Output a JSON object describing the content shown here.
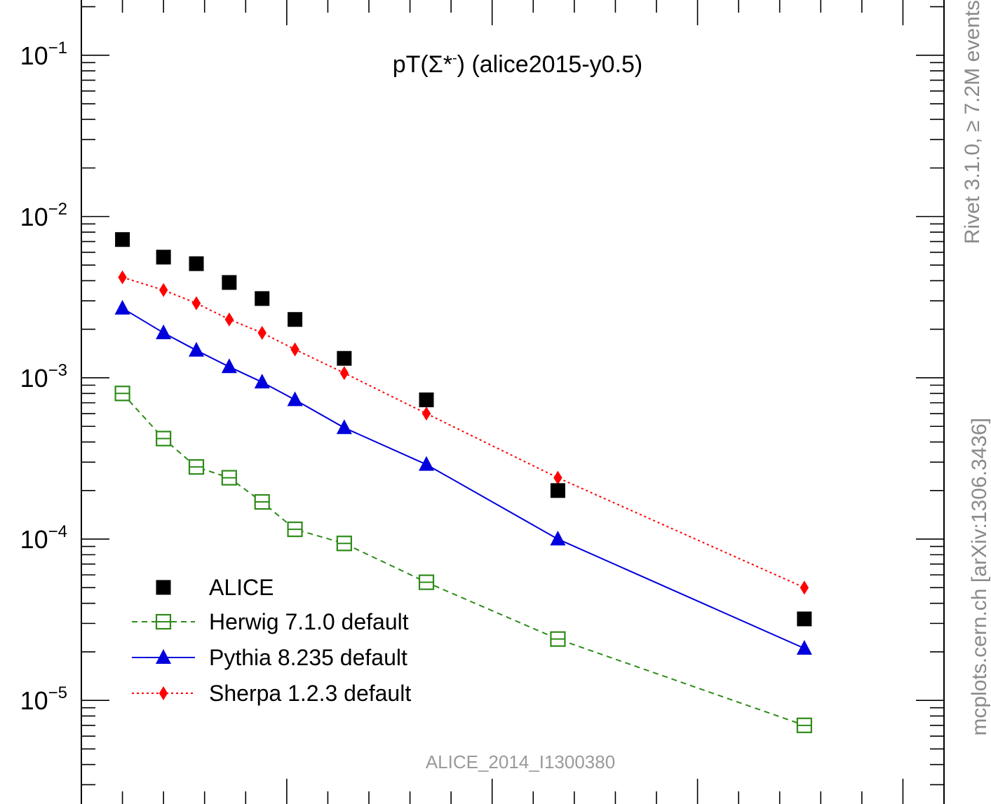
{
  "chart_data": {
    "type": "scatter",
    "title": "pT(Σ*-) (alice2015-y0.5)",
    "title_parts": {
      "main": "pT(",
      "particle": "Σ*",
      "charge": "-",
      "suffix": ") (alice2015-y0.5)"
    },
    "y_scale": "log",
    "ylim": [
      2e-06,
      0.22
    ],
    "xlim": [
      0.0,
      10.5
    ],
    "ytick_labels": [
      {
        "base": "10",
        "exp": "−1",
        "value": 0.1
      },
      {
        "base": "10",
        "exp": "−2",
        "value": 0.01
      },
      {
        "base": "10",
        "exp": "−3",
        "value": 0.001
      },
      {
        "base": "10",
        "exp": "−4",
        "value": 0.0001
      },
      {
        "base": "10",
        "exp": "−5",
        "value": 1e-05
      }
    ],
    "x": [
      0.5,
      1.0,
      1.4,
      1.8,
      2.2,
      2.6,
      3.2,
      4.2,
      5.8,
      8.8
    ],
    "series": [
      {
        "name": "ALICE",
        "marker": "square-filled",
        "line": "none",
        "color": "#000000",
        "values": [
          0.0072,
          0.0056,
          0.0051,
          0.0039,
          0.0031,
          0.0023,
          0.00132,
          0.00073,
          0.0002,
          3.2e-05
        ]
      },
      {
        "name": "Herwig 7.1.0 default",
        "marker": "square-open",
        "line": "dashed",
        "color": "#2e8b18",
        "values": [
          0.0008,
          0.00042,
          0.00028,
          0.00024,
          0.00017,
          0.000115,
          9.4e-05,
          5.4e-05,
          2.4e-05,
          7e-06
        ]
      },
      {
        "name": "Pythia 8.235 default",
        "marker": "triangle-filled",
        "line": "solid",
        "color": "#0000dd",
        "values": [
          0.0027,
          0.0019,
          0.00148,
          0.00117,
          0.00094,
          0.00073,
          0.00049,
          0.00029,
          0.0001,
          2.1e-05
        ]
      },
      {
        "name": "Sherpa 1.2.3 default",
        "marker": "diamond-filled",
        "line": "dotted",
        "color": "#ff0000",
        "values": [
          0.0042,
          0.0035,
          0.0029,
          0.0023,
          0.0019,
          0.0015,
          0.00107,
          0.0006,
          0.00024,
          5e-05
        ]
      }
    ],
    "legend_position": "bottom-left",
    "annotation": "ALICE_2014_I1300380",
    "side_texts": [
      "Rivet 3.1.0, ≥ 7.2M events",
      "mcplots.cern.ch [arXiv:1306.3436]"
    ]
  }
}
